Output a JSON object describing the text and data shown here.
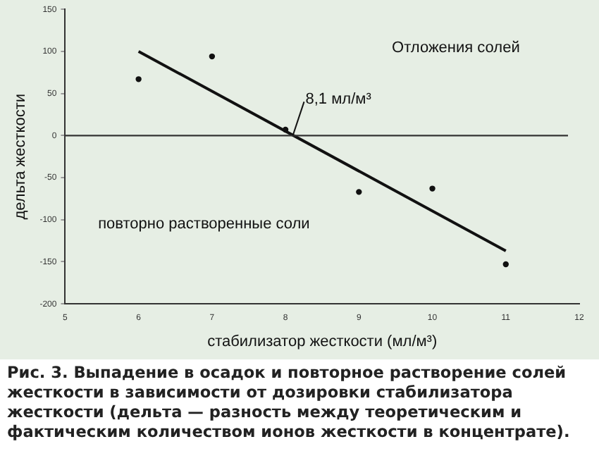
{
  "chart_data": {
    "type": "scatter",
    "xlabel": "стабилизатор жесткости (мл/м³)",
    "ylabel": "дельта жесткости",
    "x": [
      6,
      7,
      8,
      9,
      10,
      11
    ],
    "series": [
      {
        "color": "#111111",
        "values": [
          67,
          94,
          7,
          -67,
          -63,
          -153
        ],
        "marker": "circle"
      },
      {
        "type": "line",
        "color": "#111111",
        "x": [
          6,
          11
        ],
        "values": [
          100,
          -137
        ],
        "marker": "none",
        "line_style": "solid"
      }
    ],
    "xlim": [
      5,
      12
    ],
    "xticks": [
      5,
      6,
      7,
      8,
      9,
      10,
      11,
      12
    ],
    "ylim": [
      -200,
      150
    ],
    "yticks": [
      -200,
      -150,
      -100,
      -50,
      0,
      50,
      100,
      150
    ],
    "ref_lines": [
      {
        "axis": "y",
        "value": 0,
        "color": "#333333"
      }
    ],
    "grid": false,
    "legend": false,
    "annotations": [
      {
        "text": "8,1 мл/м³",
        "x": 8.1,
        "y": 0
      },
      "Отложения солей",
      "повторно растворенные соли",
      "Рис. 3. Выпадение в осадок и повторное растворение солей жесткости в зависимости от дозировки стабилизатора жесткости (дельта — разность между теоретическим и фактическим количеством ионов жесткости в концентрате)."
    ]
  }
}
